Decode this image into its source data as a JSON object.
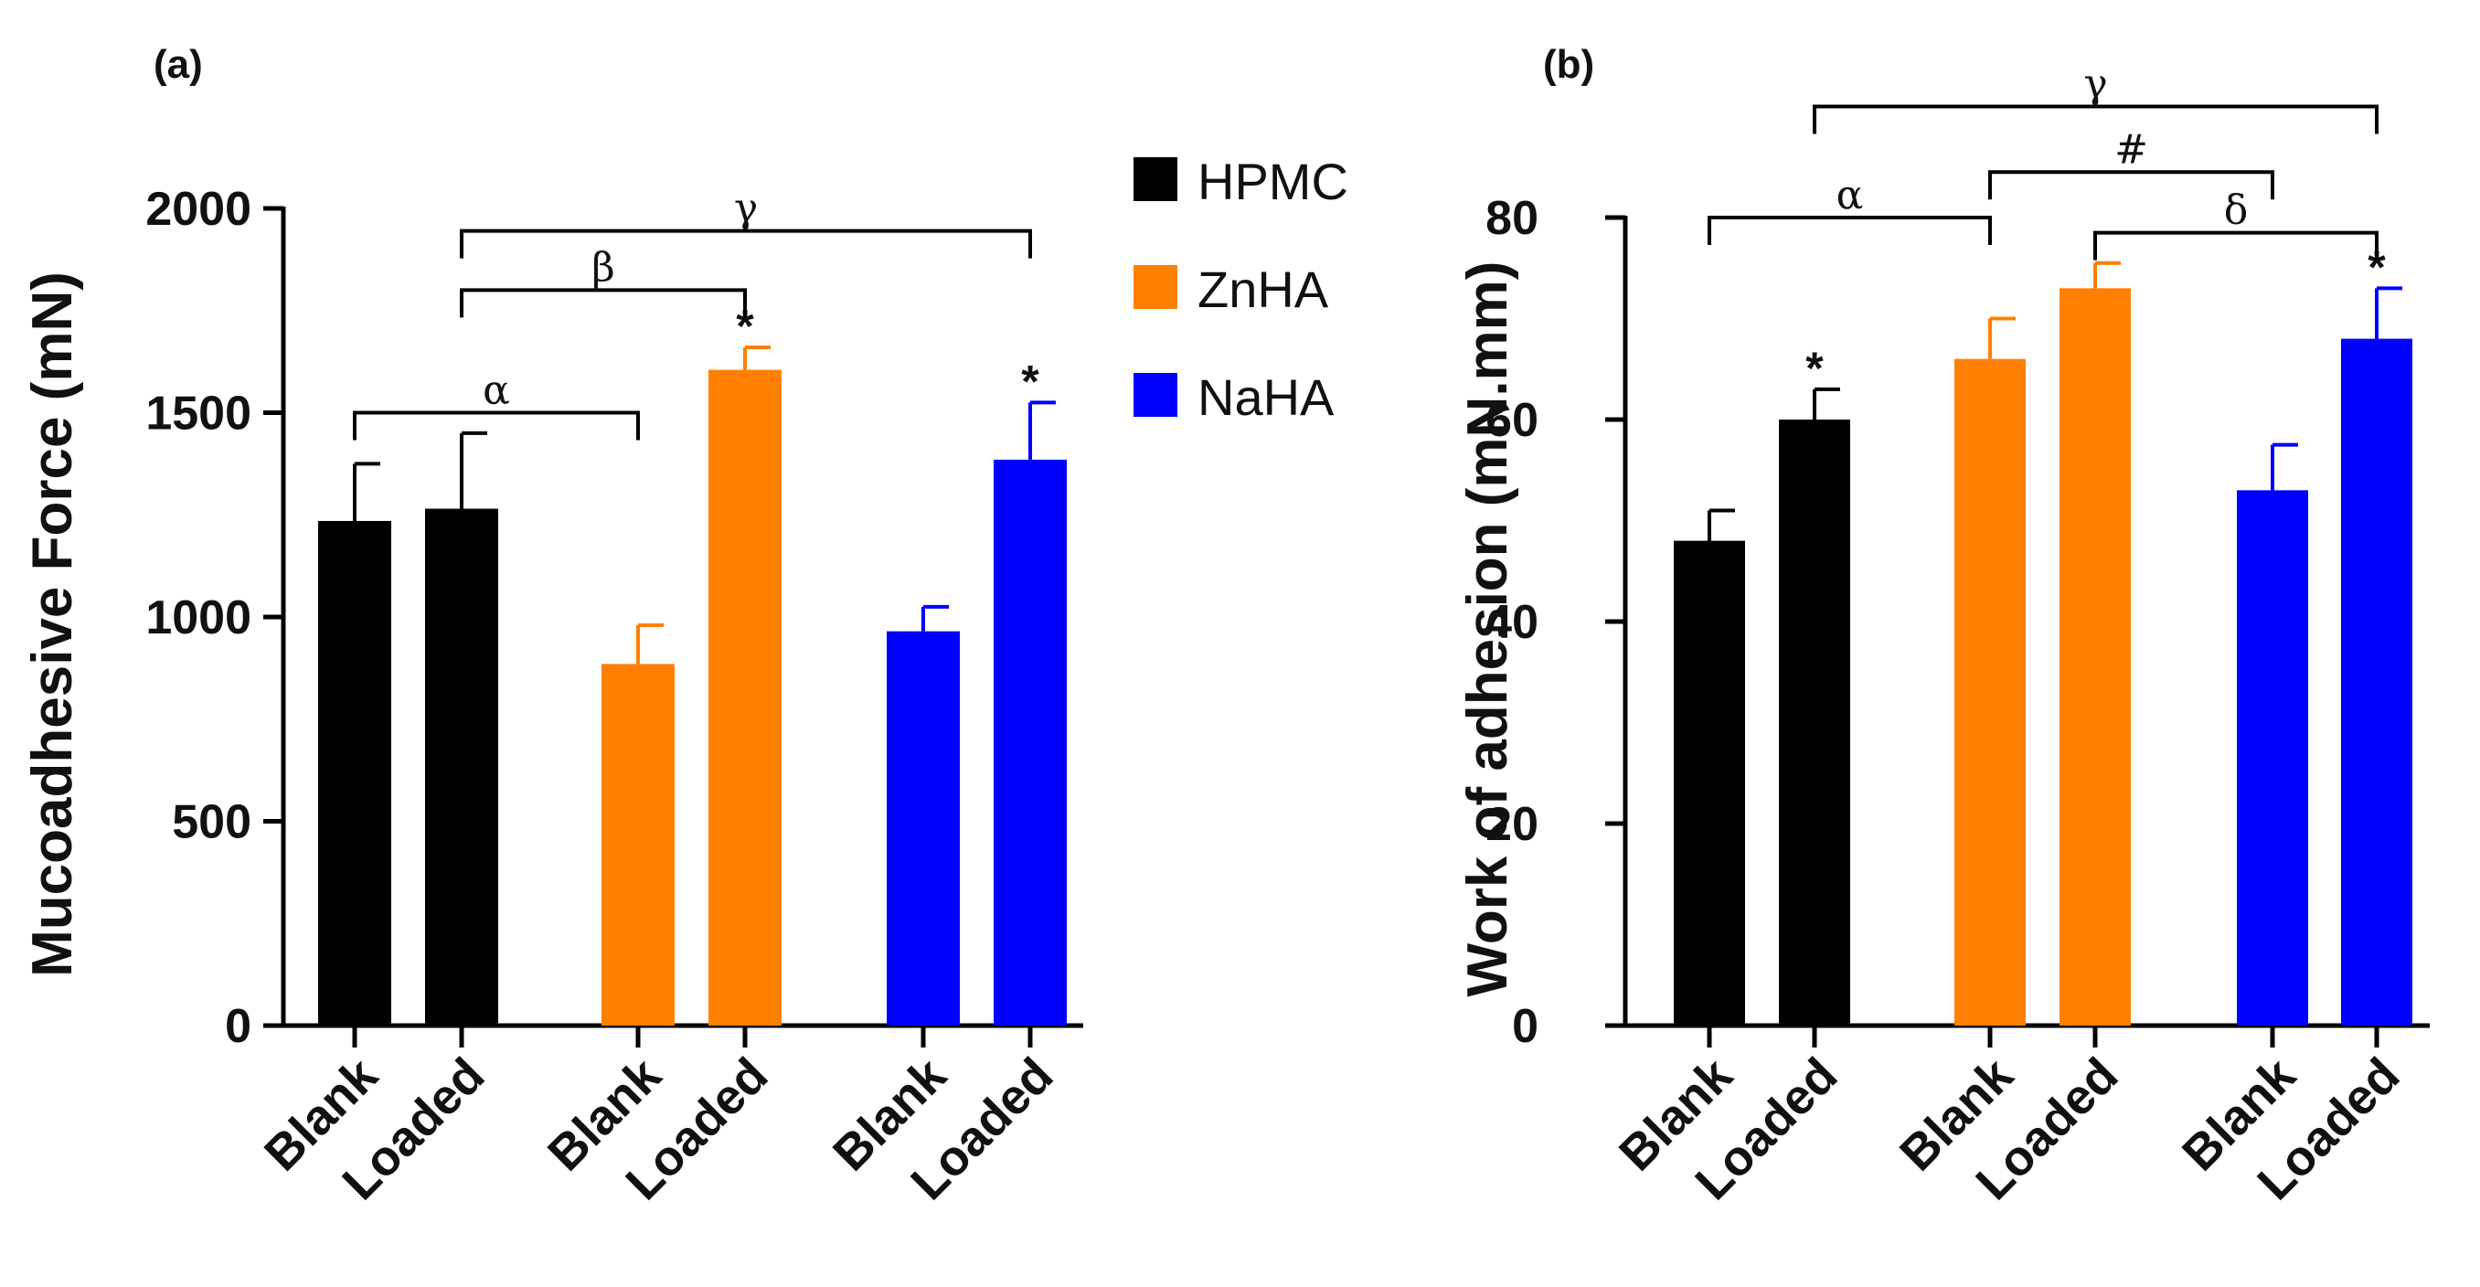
{
  "colors": {
    "HPMC": "#000000",
    "ZnHA": "#FF8000",
    "NaHA": "#0000FF"
  },
  "legend": [
    {
      "name": "HPMC",
      "color": "#000000"
    },
    {
      "name": "ZnHA",
      "color": "#FF8000"
    },
    {
      "name": "NaHA",
      "color": "#0000FF"
    }
  ],
  "chart_data": [
    {
      "panel_label": "(a)",
      "type": "bar",
      "ylabel": "Mucoadhesive Force (mN)",
      "xlabel": "",
      "ylim": [
        0,
        2000
      ],
      "yticks": [
        0,
        500,
        1000,
        1500,
        2000
      ],
      "groups": [
        "HPMC",
        "HPMC",
        "ZnHA",
        "ZnHA",
        "NaHA",
        "NaHA"
      ],
      "categories": [
        "Blank",
        "Loaded",
        "Blank",
        "Loaded",
        "Blank",
        "Loaded"
      ],
      "values": [
        1235,
        1265,
        885,
        1605,
        965,
        1385
      ],
      "errors": [
        140,
        185,
        95,
        55,
        60,
        140
      ],
      "stars": [
        false,
        false,
        false,
        true,
        false,
        true
      ],
      "brackets": [
        {
          "from": 0,
          "to": 2,
          "level": 1500,
          "symbol": "α"
        },
        {
          "from": 1,
          "to": 3,
          "level": 1800,
          "symbol": "β"
        },
        {
          "from": 1,
          "to": 5,
          "level": 1945,
          "symbol": "γ"
        }
      ]
    },
    {
      "panel_label": "(b)",
      "type": "bar",
      "ylabel": "Work of adhesion (mN.mm)",
      "xlabel": "",
      "ylim": [
        0,
        80
      ],
      "yticks": [
        0,
        20,
        40,
        60,
        80
      ],
      "groups": [
        "HPMC",
        "HPMC",
        "ZnHA",
        "ZnHA",
        "NaHA",
        "NaHA"
      ],
      "categories": [
        "Blank",
        "Loaded",
        "Blank",
        "Loaded",
        "Blank",
        "Loaded"
      ],
      "values": [
        48,
        60,
        66,
        73,
        53,
        68
      ],
      "errors": [
        3,
        3,
        4,
        2.5,
        4.5,
        5
      ],
      "stars": [
        false,
        true,
        false,
        false,
        false,
        true
      ],
      "brackets": [
        {
          "from": 0,
          "to": 2,
          "level": 80,
          "symbol": "α"
        },
        {
          "from": 2,
          "to": 4,
          "level": 84.5,
          "symbol": "#"
        },
        {
          "from": 3,
          "to": 5,
          "level": 78.5,
          "symbol": "δ"
        },
        {
          "from": 1,
          "to": 5,
          "level": 91,
          "symbol": "γ"
        }
      ]
    }
  ]
}
